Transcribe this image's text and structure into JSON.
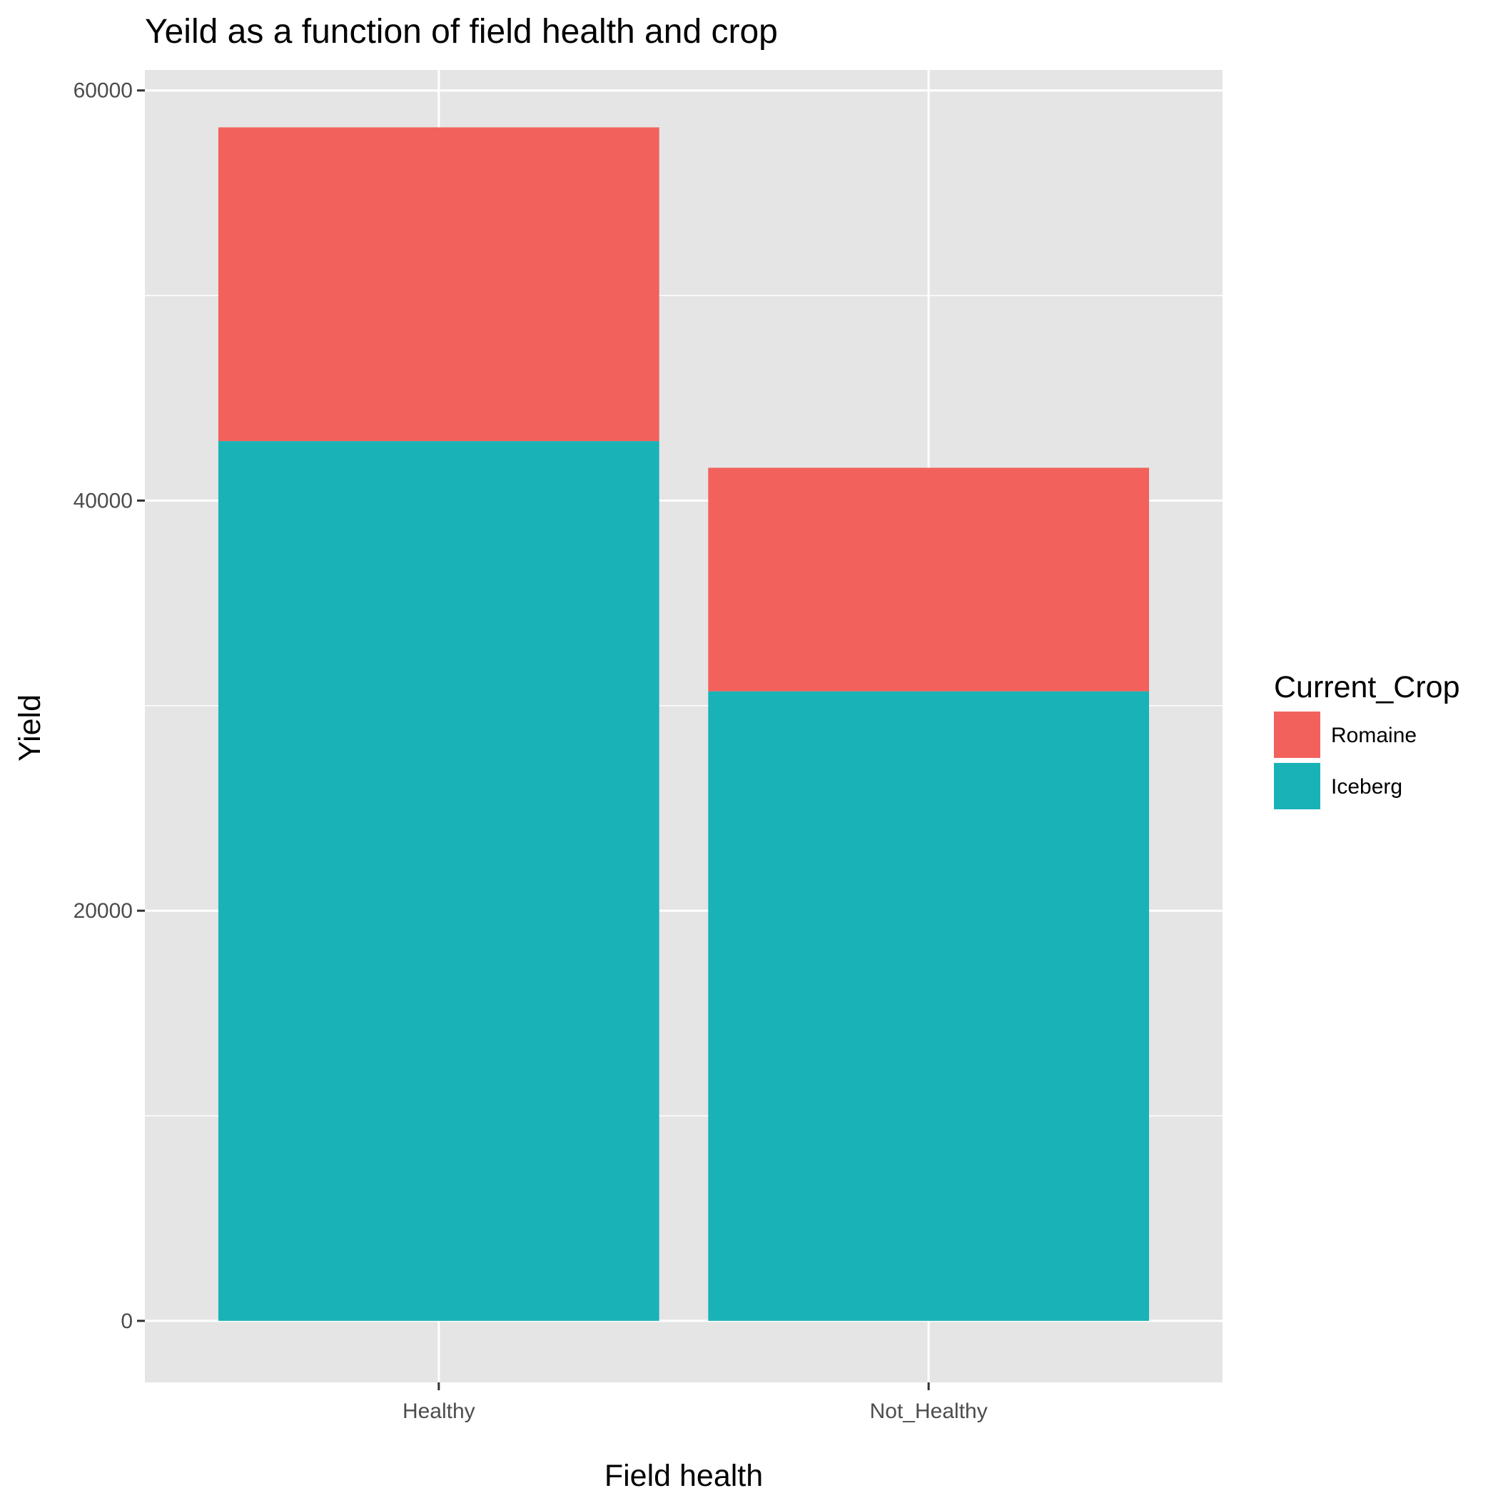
{
  "chart_data": {
    "type": "bar",
    "stacked": true,
    "title": "Yeild as a function of field health and crop",
    "xlabel": "Field health",
    "ylabel": "Yield",
    "categories": [
      "Healthy",
      "Not_Healthy"
    ],
    "series": [
      {
        "name": "Iceberg",
        "values": [
          42900,
          30700
        ],
        "color": "#19B2B7"
      },
      {
        "name": "Romaine",
        "values": [
          15300,
          10900
        ],
        "color": "#F2615C"
      }
    ],
    "ylim": [
      -3000,
      61000
    ],
    "yticks": [
      0,
      20000,
      40000,
      60000
    ],
    "ytick_labels": [
      "0",
      "20000",
      "40000",
      "60000"
    ],
    "grid": true,
    "legend": {
      "title": "Current_Crop",
      "position": "right",
      "entries": [
        {
          "label": "Romaine",
          "color": "#F2615C"
        },
        {
          "label": "Iceberg",
          "color": "#19B2B7"
        }
      ]
    },
    "background": "#E5E5E5"
  }
}
